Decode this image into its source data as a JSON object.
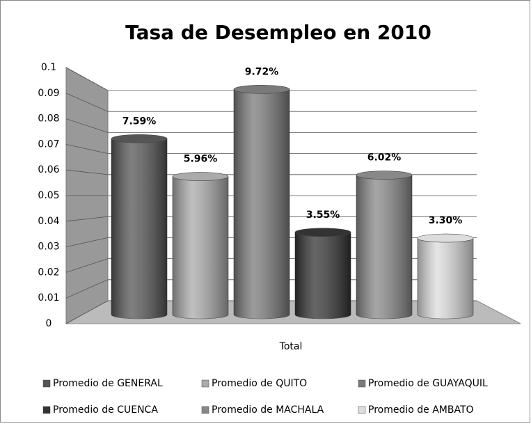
{
  "chart_data": {
    "type": "bar",
    "title": "Tasa de Desempleo en 2010",
    "xlabel": "Total",
    "categories": [
      "Total"
    ],
    "series": [
      {
        "name": "Promedio de GENERAL",
        "color": "#555555",
        "values": [
          0.0759
        ],
        "value_labels": [
          "7.59%"
        ]
      },
      {
        "name": "Promedio de QUITO",
        "color": "#aaaaaa",
        "values": [
          0.0596
        ],
        "value_labels": [
          "5.96%"
        ]
      },
      {
        "name": "Promedio de GUAYAQUIL",
        "color": "#7a7a7a",
        "values": [
          0.0972
        ],
        "value_labels": [
          "9.72%"
        ]
      },
      {
        "name": "Promedio de CUENCA",
        "color": "#333333",
        "values": [
          0.0355
        ],
        "value_labels": [
          "3.55%"
        ]
      },
      {
        "name": "Promedio de MACHALA",
        "color": "#888888",
        "values": [
          0.0602
        ],
        "value_labels": [
          "6.02%"
        ]
      },
      {
        "name": "Promedio de AMBATO",
        "color": "#dddddd",
        "values": [
          0.033
        ],
        "value_labels": [
          "3.30%"
        ]
      }
    ],
    "ylim": [
      0,
      0.1
    ],
    "yticks": [
      0,
      0.01,
      0.02,
      0.03,
      0.04,
      0.05,
      0.06,
      0.07,
      0.08,
      0.09,
      0.1
    ],
    "grid": true,
    "legend": "bottom"
  }
}
